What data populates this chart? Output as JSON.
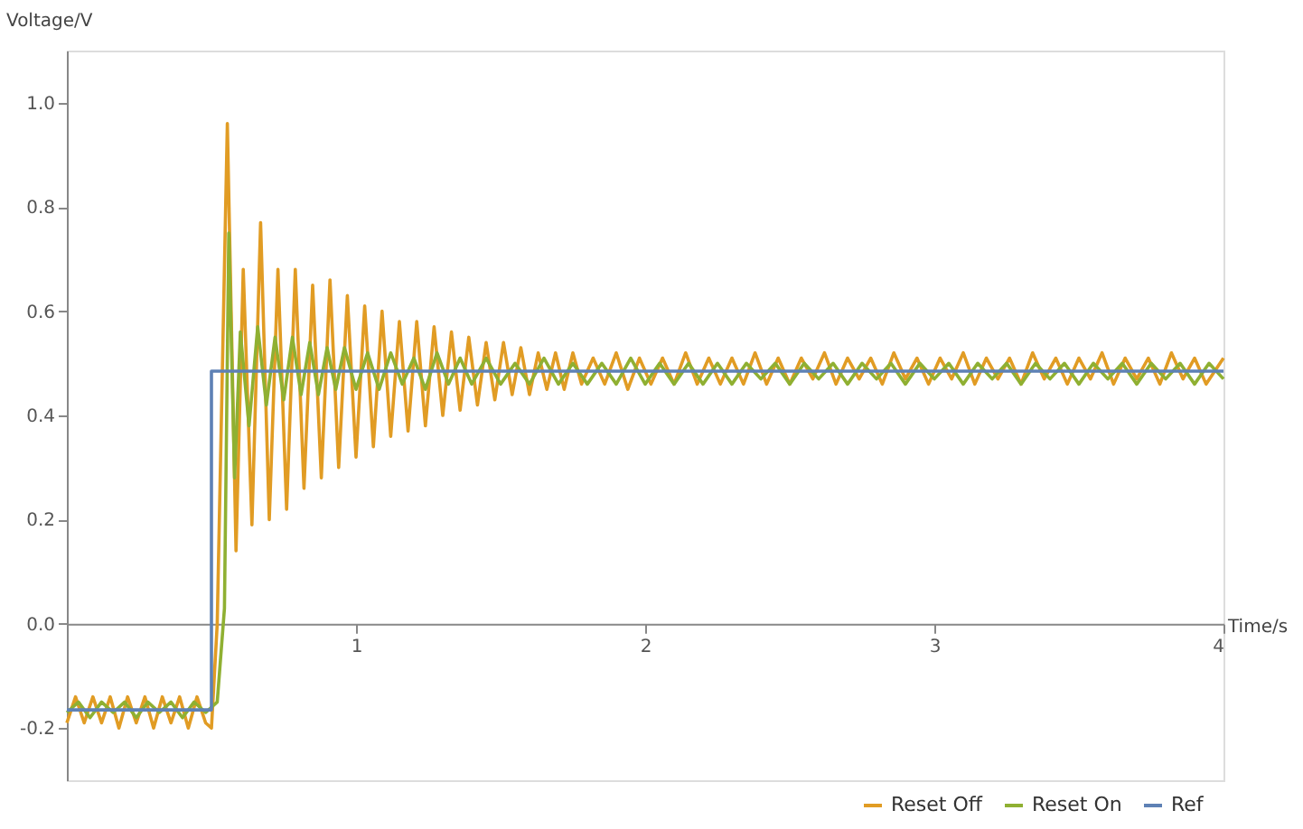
{
  "chart_data": {
    "type": "line",
    "xlabel": "Time/s",
    "ylabel": "Voltage/V",
    "xlim": [
      0,
      4
    ],
    "ylim": [
      -0.3,
      1.1
    ],
    "xticks": [
      1,
      2,
      3,
      4
    ],
    "yticks": [
      {
        "value": -0.2,
        "label": "-0.2"
      },
      {
        "value": 0,
        "label": "0.0"
      },
      {
        "value": 0.2,
        "label": "0.2"
      },
      {
        "value": 0.4,
        "label": "0.4"
      },
      {
        "value": 0.6,
        "label": "0.6"
      },
      {
        "value": 0.8,
        "label": "0.8"
      },
      {
        "value": 1,
        "label": "1.0"
      }
    ],
    "grid": false,
    "legend": "bottom right",
    "marker": "none",
    "line_style": "solid",
    "series": [
      {
        "name": "Reset Off",
        "color": "#e19c24",
        "x": [
          0,
          0.03,
          0.06,
          0.09,
          0.12,
          0.15,
          0.18,
          0.21,
          0.24,
          0.27,
          0.3,
          0.33,
          0.36,
          0.39,
          0.42,
          0.45,
          0.48,
          0.5,
          0.52,
          0.555,
          0.585,
          0.61,
          0.64,
          0.67,
          0.7,
          0.73,
          0.76,
          0.79,
          0.82,
          0.85,
          0.88,
          0.91,
          0.94,
          0.97,
          1.0,
          1.03,
          1.06,
          1.09,
          1.12,
          1.15,
          1.18,
          1.21,
          1.24,
          1.27,
          1.3,
          1.33,
          1.36,
          1.39,
          1.42,
          1.45,
          1.48,
          1.51,
          1.54,
          1.57,
          1.6,
          1.63,
          1.66,
          1.69,
          1.72,
          1.75,
          1.78,
          1.82,
          1.86,
          1.9,
          1.94,
          1.98,
          2.02,
          2.06,
          2.1,
          2.14,
          2.18,
          2.22,
          2.26,
          2.3,
          2.34,
          2.38,
          2.42,
          2.46,
          2.5,
          2.54,
          2.58,
          2.62,
          2.66,
          2.7,
          2.74,
          2.78,
          2.82,
          2.86,
          2.9,
          2.94,
          2.98,
          3.02,
          3.06,
          3.1,
          3.14,
          3.18,
          3.22,
          3.26,
          3.3,
          3.34,
          3.38,
          3.42,
          3.46,
          3.5,
          3.54,
          3.58,
          3.62,
          3.66,
          3.7,
          3.74,
          3.78,
          3.82,
          3.86,
          3.9,
          3.94,
          4.0
        ],
        "values": [
          -0.19,
          -0.14,
          -0.19,
          -0.14,
          -0.19,
          -0.14,
          -0.2,
          -0.14,
          -0.19,
          -0.14,
          -0.2,
          -0.14,
          -0.19,
          -0.14,
          -0.2,
          -0.14,
          -0.19,
          -0.2,
          0.0,
          0.96,
          0.14,
          0.68,
          0.19,
          0.77,
          0.2,
          0.68,
          0.22,
          0.68,
          0.26,
          0.65,
          0.28,
          0.66,
          0.3,
          0.63,
          0.32,
          0.61,
          0.34,
          0.6,
          0.36,
          0.58,
          0.37,
          0.58,
          0.38,
          0.57,
          0.4,
          0.56,
          0.41,
          0.55,
          0.42,
          0.54,
          0.43,
          0.54,
          0.44,
          0.53,
          0.44,
          0.52,
          0.45,
          0.52,
          0.45,
          0.52,
          0.46,
          0.51,
          0.46,
          0.52,
          0.45,
          0.51,
          0.46,
          0.51,
          0.46,
          0.52,
          0.46,
          0.51,
          0.46,
          0.51,
          0.46,
          0.52,
          0.46,
          0.51,
          0.46,
          0.51,
          0.47,
          0.52,
          0.46,
          0.51,
          0.47,
          0.51,
          0.46,
          0.52,
          0.47,
          0.51,
          0.46,
          0.51,
          0.47,
          0.52,
          0.46,
          0.51,
          0.47,
          0.51,
          0.46,
          0.52,
          0.47,
          0.51,
          0.46,
          0.51,
          0.47,
          0.52,
          0.46,
          0.51,
          0.47,
          0.51,
          0.46,
          0.52,
          0.47,
          0.51,
          0.46,
          0.51
        ]
      },
      {
        "name": "Reset On",
        "color": "#8fb032",
        "x": [
          0,
          0.04,
          0.08,
          0.12,
          0.16,
          0.2,
          0.24,
          0.28,
          0.32,
          0.36,
          0.4,
          0.44,
          0.48,
          0.52,
          0.545,
          0.56,
          0.58,
          0.6,
          0.63,
          0.66,
          0.69,
          0.72,
          0.75,
          0.78,
          0.81,
          0.84,
          0.87,
          0.9,
          0.93,
          0.96,
          1.0,
          1.04,
          1.08,
          1.12,
          1.16,
          1.2,
          1.24,
          1.28,
          1.32,
          1.36,
          1.4,
          1.45,
          1.5,
          1.55,
          1.6,
          1.65,
          1.7,
          1.75,
          1.8,
          1.85,
          1.9,
          1.95,
          2.0,
          2.05,
          2.1,
          2.15,
          2.2,
          2.25,
          2.3,
          2.35,
          2.4,
          2.45,
          2.5,
          2.55,
          2.6,
          2.65,
          2.7,
          2.75,
          2.8,
          2.85,
          2.9,
          2.95,
          3.0,
          3.05,
          3.1,
          3.15,
          3.2,
          3.25,
          3.3,
          3.35,
          3.4,
          3.45,
          3.5,
          3.55,
          3.6,
          3.65,
          3.7,
          3.75,
          3.8,
          3.85,
          3.9,
          3.95,
          4.0
        ],
        "values": [
          -0.17,
          -0.15,
          -0.18,
          -0.15,
          -0.17,
          -0.15,
          -0.18,
          -0.15,
          -0.17,
          -0.15,
          -0.18,
          -0.15,
          -0.17,
          -0.15,
          0.03,
          0.75,
          0.28,
          0.56,
          0.38,
          0.57,
          0.42,
          0.55,
          0.43,
          0.55,
          0.44,
          0.54,
          0.44,
          0.53,
          0.45,
          0.53,
          0.45,
          0.52,
          0.45,
          0.52,
          0.46,
          0.51,
          0.45,
          0.52,
          0.46,
          0.51,
          0.46,
          0.51,
          0.46,
          0.5,
          0.46,
          0.51,
          0.46,
          0.5,
          0.46,
          0.5,
          0.46,
          0.51,
          0.46,
          0.5,
          0.46,
          0.5,
          0.46,
          0.5,
          0.46,
          0.5,
          0.47,
          0.5,
          0.46,
          0.5,
          0.47,
          0.5,
          0.46,
          0.5,
          0.47,
          0.5,
          0.46,
          0.5,
          0.47,
          0.5,
          0.46,
          0.5,
          0.47,
          0.5,
          0.46,
          0.5,
          0.47,
          0.5,
          0.46,
          0.5,
          0.47,
          0.5,
          0.46,
          0.5,
          0.47,
          0.5,
          0.46,
          0.5,
          0.47
        ]
      },
      {
        "name": "Ref",
        "color": "#5e81b5",
        "x": [
          0,
          0.5,
          0.5,
          4
        ],
        "values": [
          -0.165,
          -0.165,
          0.485,
          0.485
        ]
      }
    ]
  }
}
